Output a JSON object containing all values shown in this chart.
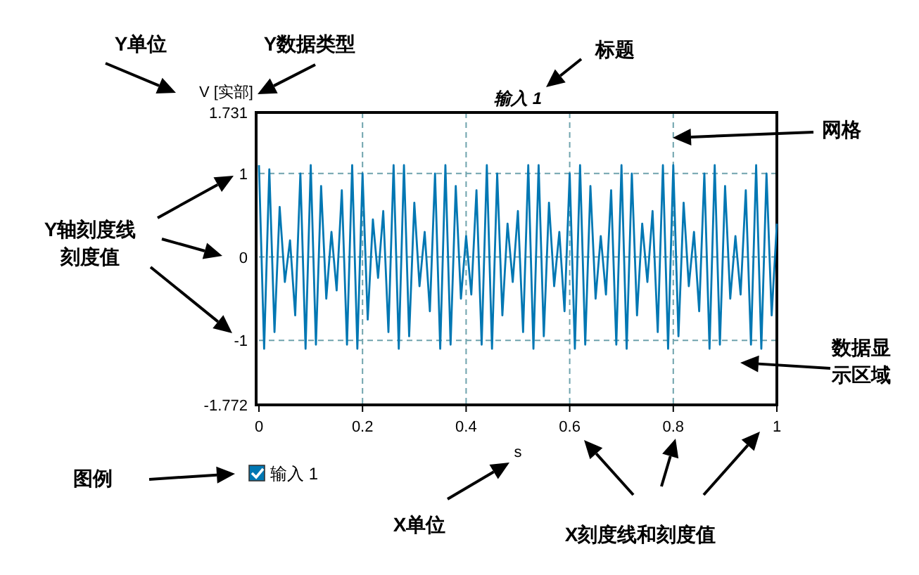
{
  "chart_data": {
    "type": "line",
    "title": "输入 1",
    "xlabel": "s",
    "ylabel": "V [实部]",
    "xlim": [
      0,
      1
    ],
    "xticks": [
      0,
      0.2,
      0.4,
      0.6,
      0.8,
      1
    ],
    "ylim": [
      -1.772,
      1.731
    ],
    "yticks": [
      -1.772,
      -1,
      0,
      1,
      1.731
    ],
    "grid": true,
    "legend": "bottom left",
    "marker": "none",
    "line_style": "solid",
    "series": [
      {
        "name": "输入 1",
        "color": "#0077b3",
        "x": [
          0,
          0.01,
          0.02,
          0.03,
          0.04,
          0.05,
          0.06,
          0.07,
          0.08,
          0.09,
          0.1,
          0.11,
          0.12,
          0.13,
          0.14,
          0.15,
          0.16,
          0.17,
          0.18,
          0.19,
          0.2,
          0.21,
          0.22,
          0.23,
          0.24,
          0.25,
          0.26,
          0.27,
          0.28,
          0.29,
          0.3,
          0.31,
          0.32,
          0.33,
          0.34,
          0.35,
          0.36,
          0.37,
          0.38,
          0.39,
          0.4,
          0.41,
          0.42,
          0.43,
          0.44,
          0.45,
          0.46,
          0.47,
          0.48,
          0.49,
          0.5,
          0.51,
          0.52,
          0.53,
          0.54,
          0.55,
          0.56,
          0.57,
          0.58,
          0.59,
          0.6,
          0.61,
          0.62,
          0.63,
          0.64,
          0.65,
          0.66,
          0.67,
          0.68,
          0.69,
          0.7,
          0.71,
          0.72,
          0.73,
          0.74,
          0.75,
          0.76,
          0.77,
          0.78,
          0.79,
          0.8,
          0.81,
          0.82,
          0.83,
          0.84,
          0.85,
          0.86,
          0.87,
          0.88,
          0.89,
          0.9,
          0.91,
          0.92,
          0.93,
          0.94,
          0.95,
          0.96,
          0.97,
          0.98,
          0.99,
          1
        ],
        "values": [
          1.1,
          -1.1,
          1.05,
          -0.9,
          0.6,
          -0.3,
          0.2,
          -0.7,
          1.0,
          -1.1,
          1.1,
          -1.05,
          0.85,
          -0.5,
          0.3,
          -0.4,
          0.8,
          -1.05,
          1.1,
          -1.1,
          1.0,
          -0.75,
          0.45,
          -0.25,
          0.55,
          -0.9,
          1.1,
          -1.1,
          1.1,
          -0.95,
          0.65,
          -0.35,
          0.3,
          -0.65,
          1.0,
          -1.1,
          1.1,
          -1.05,
          0.85,
          -0.5,
          0.25,
          -0.45,
          0.8,
          -1.05,
          1.1,
          -1.1,
          1.0,
          -0.7,
          0.4,
          -0.3,
          0.55,
          -0.9,
          1.1,
          -1.1,
          1.1,
          -0.95,
          0.65,
          -0.35,
          0.3,
          -0.65,
          1.0,
          -1.1,
          1.1,
          -1.05,
          0.85,
          -0.5,
          0.25,
          -0.45,
          0.8,
          -1.05,
          1.1,
          -1.1,
          1.0,
          -0.7,
          0.4,
          -0.3,
          0.55,
          -0.9,
          1.1,
          -1.1,
          1.1,
          -0.95,
          0.65,
          -0.35,
          0.3,
          -0.65,
          1.0,
          -1.1,
          1.1,
          -1.05,
          0.85,
          -0.5,
          0.25,
          -0.45,
          0.8,
          -1.05,
          1.1,
          -1.1,
          1.0,
          -0.7,
          0.4
        ]
      }
    ],
    "annotations": [
      "Y单位",
      "Y数据类型",
      "标题",
      "网格",
      "Y轴刻度线刻度值",
      "数据显示区域",
      "图例",
      "X单位",
      "X刻度线和刻度值"
    ]
  }
}
